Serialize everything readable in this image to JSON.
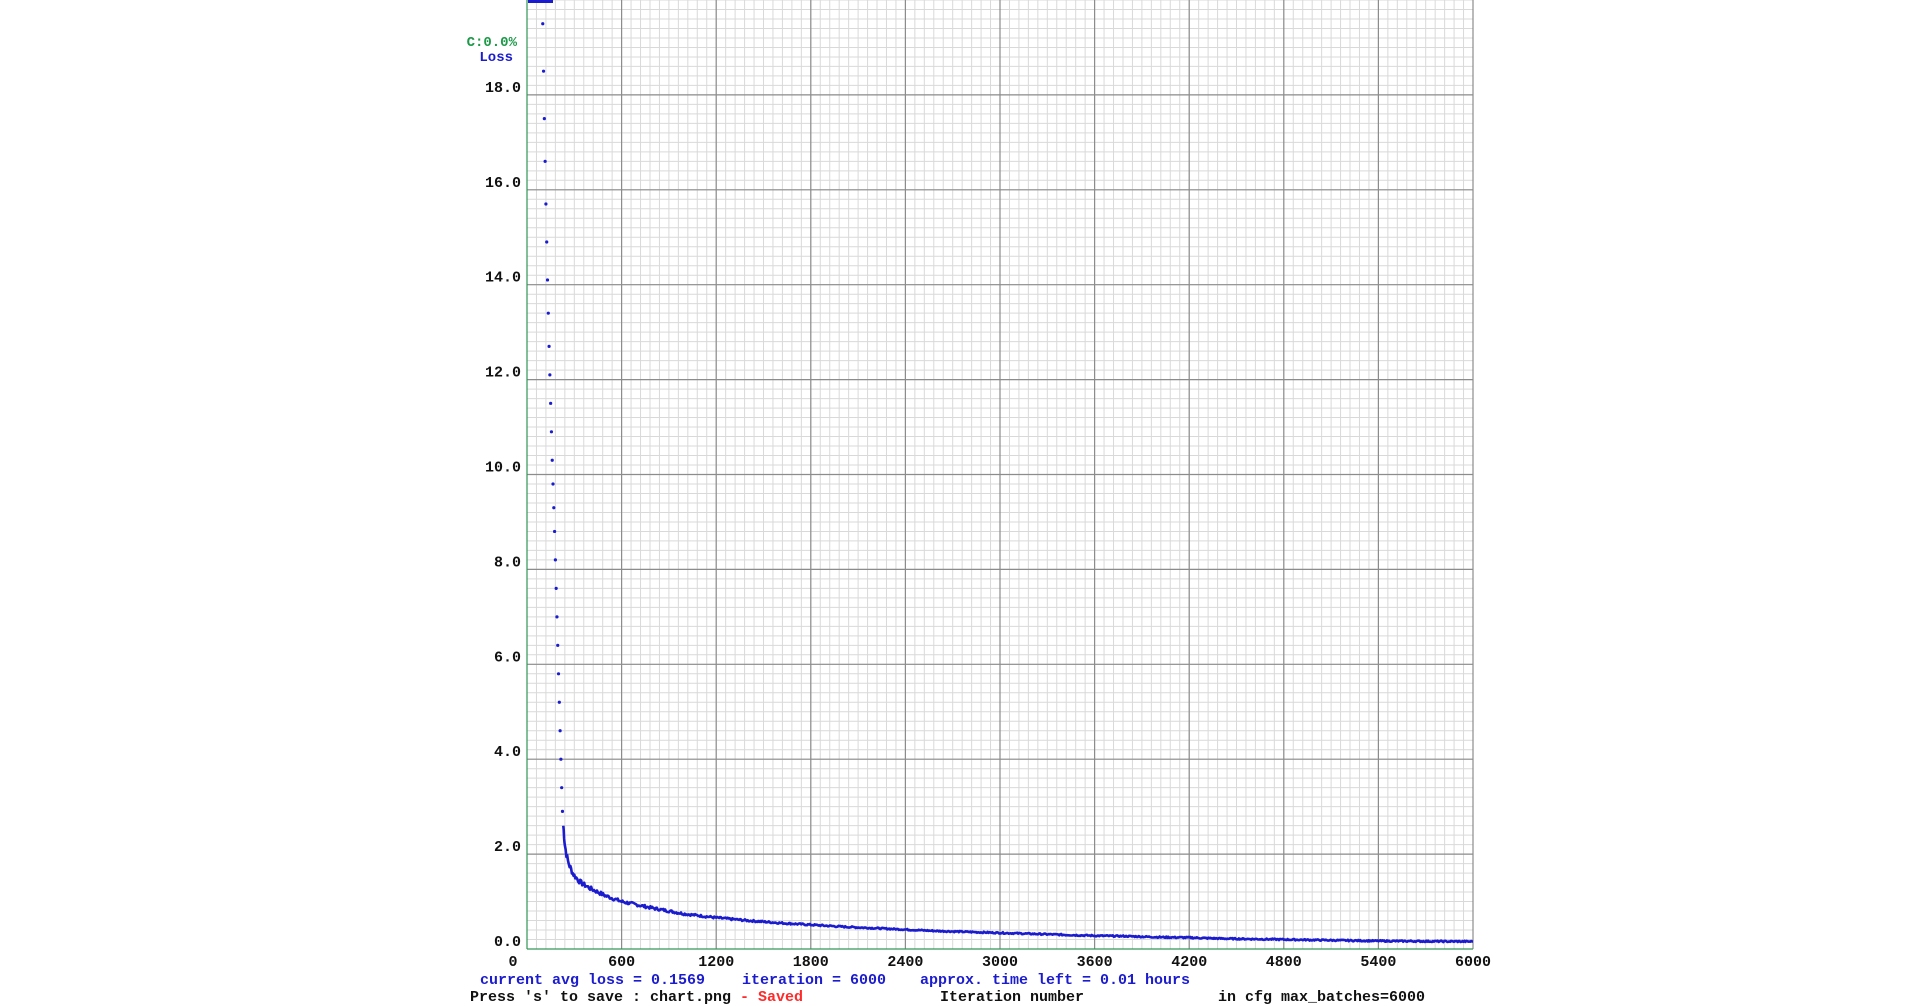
{
  "chart_data": {
    "type": "line",
    "title": "",
    "xlabel": "Iteration number",
    "ylabel": "Loss",
    "top_left_labels": {
      "accuracy": "C:0.0%",
      "loss": "Loss"
    },
    "xlim": [
      0,
      6000
    ],
    "ylim": [
      0,
      20
    ],
    "x_ticks": [
      0,
      600,
      1200,
      1800,
      2400,
      3000,
      3600,
      4200,
      4800,
      5400,
      6000
    ],
    "x_tick_labels": [
      "0",
      "600",
      "1200",
      "1800",
      "2400",
      "3000",
      "3600",
      "4200",
      "4800",
      "5400",
      "6000"
    ],
    "y_ticks": [
      0,
      2,
      4,
      6,
      8,
      10,
      12,
      14,
      16,
      18
    ],
    "y_tick_labels": [
      "0.0",
      "2.0",
      "4.0",
      "6.0",
      "8.0",
      "10.0",
      "12.0",
      "14.0",
      "16.0",
      "18.0"
    ],
    "grid": true,
    "series": [
      {
        "name": "Loss",
        "color": "#1c1ccf",
        "x": [
          100,
          105,
          110,
          115,
          120,
          125,
          130,
          135,
          140,
          145,
          150,
          155,
          160,
          165,
          170,
          175,
          180,
          185,
          190,
          195,
          200,
          205,
          210,
          215,
          220,
          225,
          230,
          235,
          240,
          250,
          260,
          270,
          280,
          290,
          300,
          325,
          350,
          400,
          450,
          500,
          550,
          600,
          700,
          800,
          900,
          1000,
          1200,
          1400,
          1600,
          1800,
          2000,
          2200,
          2400,
          2600,
          2800,
          3000,
          3200,
          3400,
          3600,
          3800,
          4000,
          4200,
          4400,
          4600,
          4800,
          5000,
          5200,
          5400,
          5600,
          5800,
          6000
        ],
        "y": [
          19.5,
          18.5,
          17.5,
          16.6,
          15.7,
          14.9,
          14.1,
          13.4,
          12.7,
          12.1,
          11.5,
          10.9,
          10.3,
          9.8,
          9.3,
          8.8,
          8.2,
          7.6,
          7.0,
          6.4,
          5.8,
          5.2,
          4.6,
          4.0,
          3.4,
          2.9,
          2.6,
          2.4,
          2.2,
          2.0,
          1.85,
          1.75,
          1.68,
          1.6,
          1.55,
          1.45,
          1.38,
          1.28,
          1.2,
          1.12,
          1.06,
          1.0,
          0.93,
          0.86,
          0.8,
          0.74,
          0.66,
          0.6,
          0.55,
          0.51,
          0.47,
          0.44,
          0.41,
          0.38,
          0.36,
          0.34,
          0.32,
          0.3,
          0.28,
          0.27,
          0.25,
          0.24,
          0.22,
          0.21,
          0.2,
          0.19,
          0.18,
          0.17,
          0.165,
          0.16,
          0.157
        ]
      }
    ]
  },
  "status": {
    "line1": {
      "avg_loss": "current avg loss = 0.1569",
      "iteration": "iteration = 6000",
      "time_left": "approx. time left = 0.01 hours"
    },
    "line2": {
      "save_hint": "Press 's' to save : chart.png",
      "saved": " - Saved",
      "xlabel": "Iteration number",
      "max_batches": "in cfg max_batches=6000"
    }
  },
  "colors": {
    "loss_line": "#1c1ccf",
    "accuracy_label": "#1d9a48",
    "saved": "#ff2a2a",
    "major_grid": "#8c8c8c",
    "minor_grid": "#d9d9d9"
  }
}
